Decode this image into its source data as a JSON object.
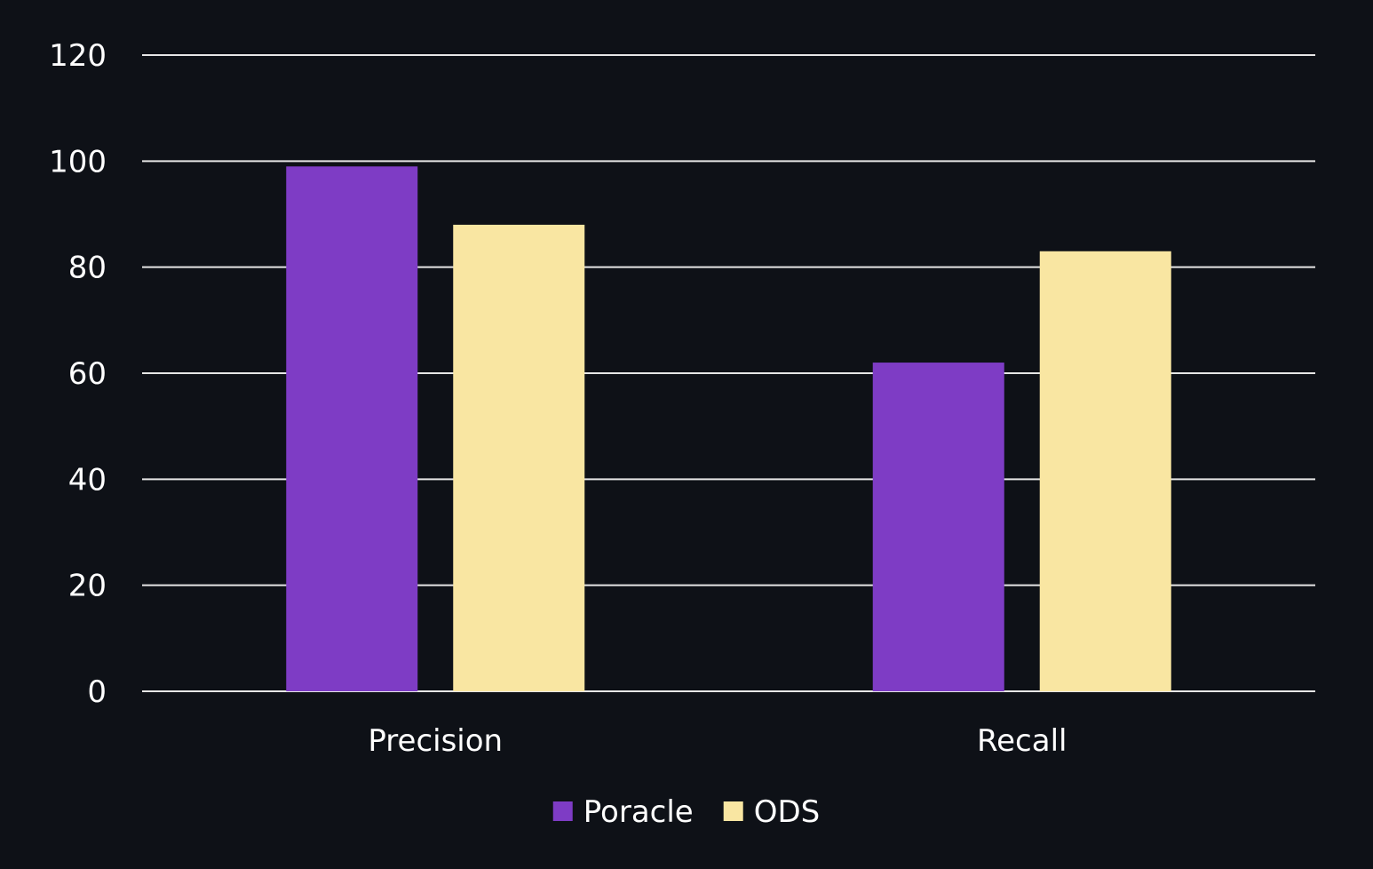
{
  "chart_data": {
    "type": "bar",
    "title": "",
    "xlabel": "",
    "ylabel": "",
    "categories": [
      "Precision",
      "Recall"
    ],
    "series": [
      {
        "name": "Poracle",
        "values": [
          99,
          62
        ],
        "color": "#7e3cc5"
      },
      {
        "name": "ODS",
        "values": [
          88,
          83
        ],
        "color": "#f9e6a2"
      }
    ],
    "ylim": [
      0,
      120
    ],
    "yticks": [
      0,
      20,
      40,
      60,
      80,
      100,
      120
    ],
    "grid": true,
    "legend_position": "bottom-center",
    "background": "#0e1117",
    "text_color": "#ffffff",
    "gridline_color": "#e6e6e6"
  }
}
